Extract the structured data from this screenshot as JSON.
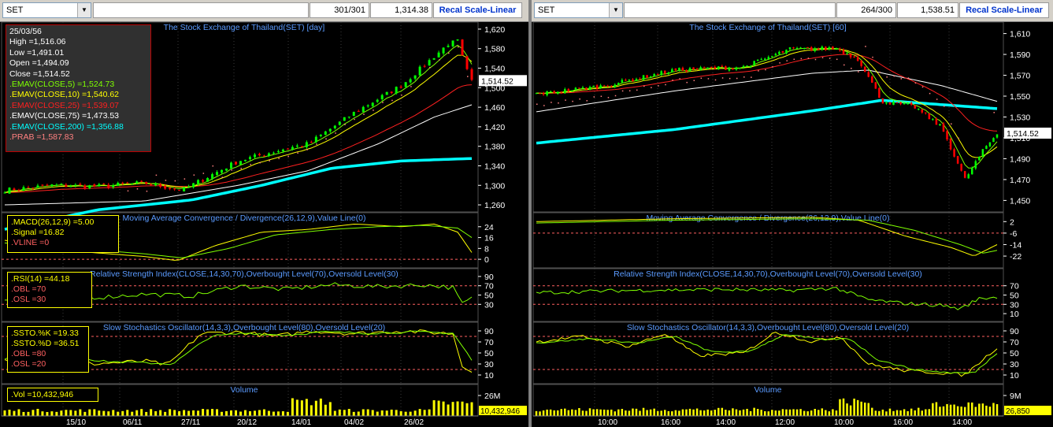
{
  "left": {
    "symbol": "SET",
    "bar_count": "301/301",
    "last_value": "1,314.38",
    "scale_button": "Recal Scale-Linear",
    "price_title": "The Stock Exchange of Thailand(SET) [day]",
    "price_ticks": [
      "1,620",
      "1,580",
      "1,540",
      "1,500",
      "1,460",
      "1,420",
      "1,380",
      "1,340",
      "1,300",
      "1,260"
    ],
    "price_marker": "1,514.52",
    "data_window": [
      {
        "text": "25/03/56",
        "color": "#ffffff"
      },
      {
        "text": "High  =1,516.06",
        "color": "#ffffff"
      },
      {
        "text": "Low   =1,491.01",
        "color": "#ffffff"
      },
      {
        "text": "Open  =1,494.09",
        "color": "#ffffff"
      },
      {
        "text": "Close  =1,514.52",
        "color": "#ffffff"
      },
      {
        "text": ".EMAV(CLOSE,5)    =1,524.73",
        "color": "#7fff00"
      },
      {
        "text": ".EMAV(CLOSE,10)   =1,540.62",
        "color": "#ffff00"
      },
      {
        "text": ".EMAV(CLOSE,25)   =1,539.07",
        "color": "#ff2020"
      },
      {
        "text": ".EMAV(CLOSE,75)   =1,473.53",
        "color": "#ffffff"
      },
      {
        "text": ".EMAV(CLOSE,200)  =1,356.88",
        "color": "#00ffff"
      },
      {
        "text": ".PRAB  =1,587.83",
        "color": "#ff8080"
      }
    ],
    "macd_title": "Moving Average Convergence / Divergence(26,12,9),Value Line(0)",
    "macd_box": [
      ".MACD(26,12,9)    =5.00",
      ".Signal  =16.82",
      ".VLINE   =0"
    ],
    "macd_ticks": [
      "24",
      "16",
      "8",
      "0"
    ],
    "rsi_title": "Relative Strength Index(CLOSE,14,30,70),Overbought Level(70),Oversold Level(30)",
    "rsi_box": [
      ".RSI(14)    =44.18",
      ".OBL   =70",
      ".OSL   =30"
    ],
    "rsi_ticks": [
      "90",
      "70",
      "50",
      "30"
    ],
    "ssto_title": "Slow Stochastics Oscillator(14,3,3),Overbought Level(80),Oversold Level(20)",
    "ssto_box": [
      ".SSTO.%K    =19.33",
      ".SSTO.%D    =36.51",
      ".OBL   =80",
      ".OSL   =20"
    ],
    "ssto_ticks": [
      "90",
      "70",
      "50",
      "30",
      "10"
    ],
    "vol_title": "Volume",
    "vol_box": ".Vol   =10,432,946",
    "vol_tick": "26M",
    "vol_marker": "10,432,946",
    "dates": [
      "15/10",
      "06/11",
      "27/11",
      "20/12",
      "14/01",
      "04/02",
      "26/02"
    ]
  },
  "right": {
    "symbol": "SET",
    "bar_count": "264/300",
    "last_value": "1,538.51",
    "scale_button": "Recal Scale-Linear",
    "price_title": "The Stock Exchange of Thailand(SET) [60]",
    "price_ticks": [
      "1,610",
      "1,590",
      "1,570",
      "1,550",
      "1,530",
      "1,510",
      "1,490",
      "1,470",
      "1,450"
    ],
    "price_marker": "1,514.52",
    "macd_title": "Moving Average Convergence / Divergence(26,12,9),Value Line(0)",
    "macd_ticks": [
      "2",
      "-6",
      "-14",
      "-22"
    ],
    "rsi_title": "Relative Strength Index(CLOSE,14,30,70),Overbought Level(70),Oversold Level(30)",
    "rsi_ticks": [
      "70",
      "50",
      "30",
      "10"
    ],
    "ssto_title": "Slow Stochastics Oscillator(14,3,3),Overbought Level(80),Oversold Level(20)",
    "ssto_ticks": [
      "90",
      "70",
      "50",
      "30",
      "10"
    ],
    "vol_title": "Volume",
    "vol_tick": "9M",
    "vol_marker": "26,850",
    "times": [
      "10:00",
      "16:00",
      "14:00",
      "12:00",
      "10:00",
      "16:00",
      "14:00"
    ]
  },
  "colors": {
    "ema5": "#7fff00",
    "ema10": "#ffff00",
    "ema25": "#ff2020",
    "ema75": "#ffffff",
    "ema200": "#00ffff",
    "prab": "#ff8080",
    "up": "#00ff00",
    "down": "#ff0000",
    "ref": "#ff6060",
    "volume": "#ffff00",
    "title": "#5b9bff"
  }
}
